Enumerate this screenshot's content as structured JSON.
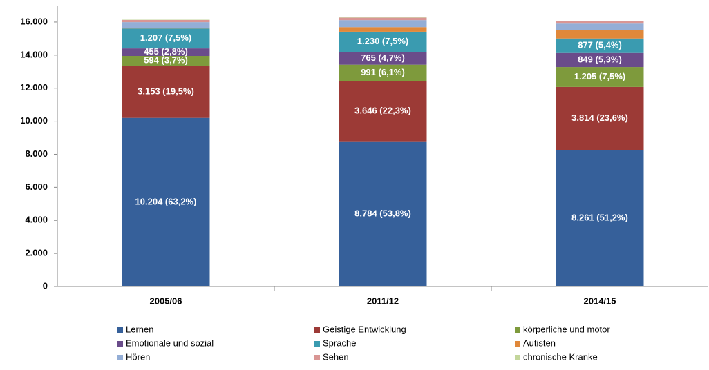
{
  "chart_data": {
    "type": "stacked_bar",
    "categories": [
      "2005/06",
      "2011/12",
      "2014/15"
    ],
    "series": [
      {
        "name": "Lernen",
        "color": "#36609a",
        "values": [
          10204,
          8784,
          8261
        ],
        "value_labels": [
          "10.204 (63,2%)",
          "8.784 (53,8%)",
          "8.261 (51,2%)"
        ]
      },
      {
        "name": "Geistige Entwicklung",
        "color": "#9c3a36",
        "values": [
          3153,
          3646,
          3814
        ],
        "value_labels": [
          "3.153 (19,5%)",
          "3.646 (22,3%)",
          "3.814 (23,6%)"
        ]
      },
      {
        "name": "körperliche und motor",
        "color": "#7e9a3c",
        "values": [
          594,
          991,
          1205
        ],
        "value_labels": [
          "594 (3,7%)",
          "991 (6,1%)",
          "1.205 (7,5%)"
        ]
      },
      {
        "name": "Emotionale und sozial",
        "color": "#6a4c8a",
        "values": [
          455,
          765,
          849
        ],
        "value_labels": [
          "455 (2,8%)",
          "765 (4,7%)",
          "849 (5,3%)"
        ]
      },
      {
        "name": "Sprache",
        "color": "#3a9bb0",
        "values": [
          1207,
          1230,
          877
        ],
        "value_labels": [
          "1.207 (7,5%)",
          "1.230 (7,5%)",
          "877 (5,4%)"
        ]
      },
      {
        "name": "Autisten",
        "color": "#e0883a",
        "values": [
          50,
          280,
          500
        ]
      },
      {
        "name": "Hören",
        "color": "#94aed6",
        "values": [
          330,
          420,
          400
        ]
      },
      {
        "name": "Sehen",
        "color": "#d99694",
        "values": [
          130,
          150,
          150
        ]
      },
      {
        "name": "chronische Kranke",
        "color": "#c3d69b",
        "values": [
          20,
          20,
          20
        ]
      }
    ],
    "ylim": [
      0,
      17000
    ],
    "yticks": [
      0,
      {
        "value": 2000,
        "label": "2.000"
      },
      {
        "value": 4000,
        "label": "4.000"
      },
      {
        "value": 6000,
        "label": "6.000"
      },
      {
        "value": 8000,
        "label": "8.000"
      },
      {
        "value": 10000,
        "label": "10.000"
      },
      {
        "value": 12000,
        "label": "12.000"
      },
      {
        "value": 14000,
        "label": "14.000"
      },
      {
        "value": 16000,
        "label": "16.000"
      }
    ],
    "grid": false,
    "legend": "bottom"
  }
}
